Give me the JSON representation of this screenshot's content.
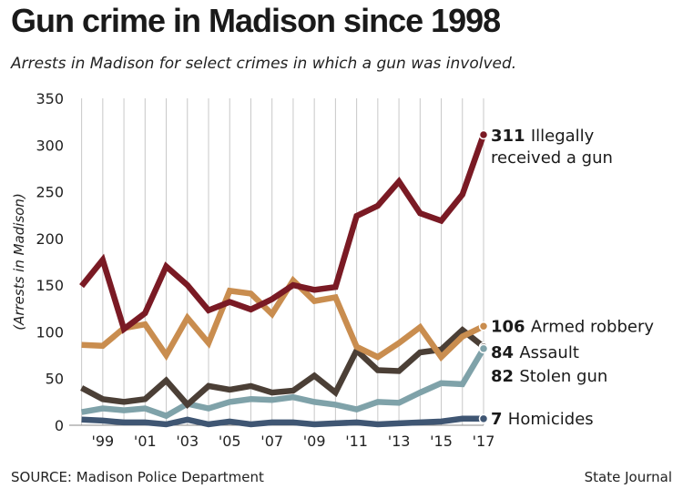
{
  "title": "Gun crime in Madison since 1998",
  "subtitle": "Arrests in Madison for select crimes in which a gun was involved.",
  "source": "SOURCE: Madison Police Department",
  "credit": "State Journal",
  "chart_data": {
    "type": "line",
    "ylabel": "(Arrests in Madison)",
    "xlabel": "",
    "ylim": [
      0,
      350
    ],
    "yticks": [
      0,
      50,
      100,
      150,
      200,
      250,
      300,
      350
    ],
    "grid": "vertical",
    "x": [
      1998,
      1999,
      2000,
      2001,
      2002,
      2003,
      2004,
      2005,
      2006,
      2007,
      2008,
      2009,
      2010,
      2011,
      2012,
      2013,
      2014,
      2015,
      2016,
      2017
    ],
    "xtick_labels": [
      {
        "x": 1999,
        "label": "'99"
      },
      {
        "x": 2001,
        "label": "'01"
      },
      {
        "x": 2003,
        "label": "'03"
      },
      {
        "x": 2005,
        "label": "'05"
      },
      {
        "x": 2007,
        "label": "'07"
      },
      {
        "x": 2009,
        "label": "'09"
      },
      {
        "x": 2011,
        "label": "'11"
      },
      {
        "x": 2013,
        "label": "'13"
      },
      {
        "x": 2015,
        "label": "'15"
      },
      {
        "x": 2017,
        "label": "'17"
      }
    ],
    "series": [
      {
        "name": "Illegally received a gun",
        "label_lines": [
          "Illegally",
          "received a gun"
        ],
        "value_label": "311",
        "color": "#7a1a24",
        "values": [
          149,
          177,
          103,
          120,
          170,
          150,
          123,
          132,
          124,
          135,
          150,
          145,
          148,
          224,
          235,
          261,
          227,
          219,
          247,
          311
        ]
      },
      {
        "name": "Armed robbery",
        "label_lines": [
          "Armed robbery"
        ],
        "value_label": "106",
        "color": "#c98d4f",
        "values": [
          86,
          85,
          104,
          108,
          75,
          115,
          88,
          144,
          141,
          119,
          155,
          133,
          137,
          84,
          73,
          88,
          105,
          73,
          95,
          106
        ]
      },
      {
        "name": "Assault",
        "label_lines": [
          "Assault"
        ],
        "value_label": "84",
        "color": "#4b3f36",
        "values": [
          40,
          28,
          25,
          28,
          48,
          22,
          42,
          38,
          42,
          35,
          37,
          53,
          35,
          80,
          59,
          58,
          78,
          81,
          102,
          84
        ]
      },
      {
        "name": "Stolen gun",
        "label_lines": [
          "Stolen gun"
        ],
        "value_label": "82",
        "color": "#7fa2a9",
        "values": [
          14,
          18,
          16,
          18,
          10,
          23,
          18,
          25,
          28,
          27,
          30,
          25,
          22,
          17,
          25,
          24,
          35,
          45,
          44,
          82
        ]
      },
      {
        "name": "Homicides",
        "label_lines": [
          "Homicides"
        ],
        "value_label": "7",
        "color": "#3f5673",
        "values": [
          6,
          5,
          3,
          3,
          1,
          6,
          1,
          4,
          1,
          3,
          3,
          1,
          2,
          3,
          1,
          2,
          3,
          4,
          7,
          7
        ]
      }
    ]
  }
}
